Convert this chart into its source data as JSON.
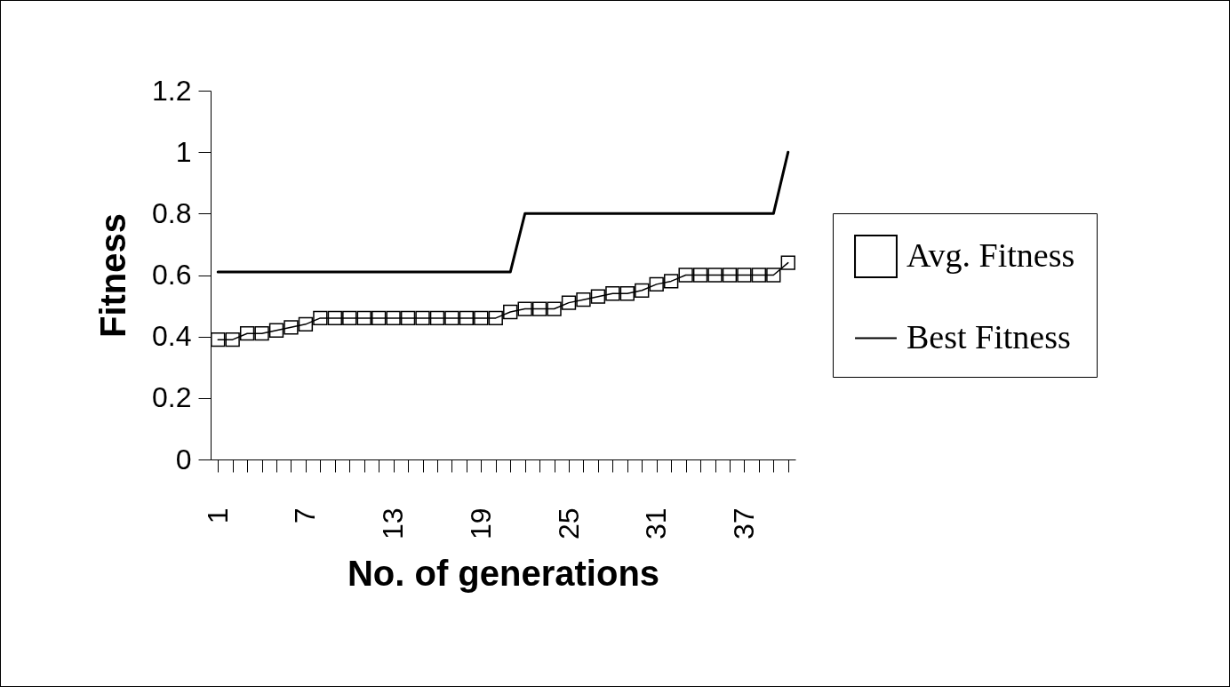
{
  "chart_data": {
    "type": "line",
    "xlabel": "No. of generations",
    "ylabel": "Fitness",
    "categories": [
      "1",
      null,
      null,
      null,
      null,
      null,
      "7",
      null,
      null,
      null,
      null,
      null,
      "13",
      null,
      null,
      null,
      null,
      null,
      "19",
      null,
      null,
      null,
      null,
      null,
      "25",
      null,
      null,
      null,
      null,
      null,
      "31",
      null,
      null,
      null,
      null,
      null,
      "37",
      null,
      null,
      null
    ],
    "series": [
      {
        "name": "Avg. Fitness",
        "color": "#000000",
        "marker": "square",
        "values": [
          0.39,
          0.39,
          0.41,
          0.41,
          0.42,
          0.43,
          0.44,
          0.46,
          0.46,
          0.46,
          0.46,
          0.46,
          0.46,
          0.46,
          0.46,
          0.46,
          0.46,
          0.46,
          0.46,
          0.46,
          0.48,
          0.49,
          0.49,
          0.49,
          0.51,
          0.52,
          0.53,
          0.54,
          0.54,
          0.55,
          0.57,
          0.58,
          0.6,
          0.6,
          0.6,
          0.6,
          0.6,
          0.6,
          0.6,
          0.64
        ]
      },
      {
        "name": "Best Fitness",
        "color": "#000000",
        "marker": "none",
        "values": [
          0.61,
          0.61,
          0.61,
          0.61,
          0.61,
          0.61,
          0.61,
          0.61,
          0.61,
          0.61,
          0.61,
          0.61,
          0.61,
          0.61,
          0.61,
          0.61,
          0.61,
          0.61,
          0.61,
          0.61,
          0.61,
          0.8,
          0.8,
          0.8,
          0.8,
          0.8,
          0.8,
          0.8,
          0.8,
          0.8,
          0.8,
          0.8,
          0.8,
          0.8,
          0.8,
          0.8,
          0.8,
          0.8,
          0.8,
          1.0
        ]
      }
    ],
    "ylim": [
      0,
      1.2
    ],
    "yticks": [
      0,
      0.2,
      0.4,
      0.6,
      0.8,
      1,
      1.2
    ],
    "grid": false,
    "legend": "right",
    "line_style": "solid"
  }
}
